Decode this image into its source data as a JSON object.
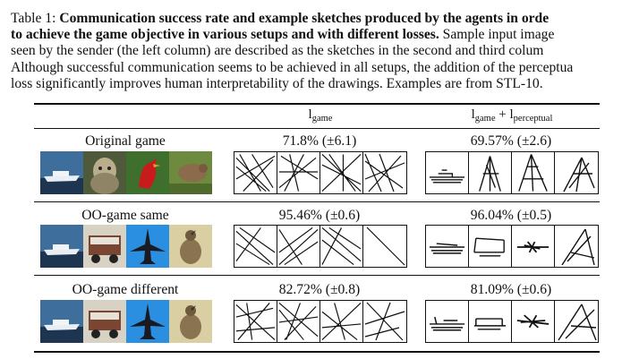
{
  "caption": {
    "label": "Table 1:",
    "bold": "Communication success rate and example sketches produced by the agents in orde",
    "bold_cont": "to achieve the game objective in various setups and with different losses.",
    "line2_rest": "Sample input image",
    "line3": "seen by the sender (the left column) are described as the sketches in the second and third colum",
    "line4": "Although successful communication seems to be achieved in all setups, the addition of the perceptua",
    "line5": "loss significantly improves human interpretability of the drawings. Examples are from STL-10."
  },
  "table": {
    "col1_header": {
      "base": "l",
      "sub": "game"
    },
    "col2_header": {
      "base1": "l",
      "sub1": "game",
      "plus": " + ",
      "base2": "l",
      "sub2": "perceptual"
    },
    "rows": [
      {
        "title": "Original game",
        "score_game": "71.8% (±6.1)",
        "score_perceptual": "69.57% (±2.6)",
        "images": [
          "ship-image",
          "monkey-image",
          "cardinal-bird-image",
          "bird-on-grass-image"
        ]
      },
      {
        "title": "OO-game same",
        "score_game": "95.46% (±0.6)",
        "score_perceptual": "96.04% (±0.5)",
        "images": [
          "ship-image",
          "truck-image",
          "jet-airplane-image",
          "bird-image"
        ]
      },
      {
        "title": "OO-game different",
        "score_game": "82.72% (±0.8)",
        "score_perceptual": "81.09% (±0.6)",
        "images": [
          "ship-image",
          "truck-image",
          "jet-airplane-image",
          "bird-image"
        ]
      }
    ]
  }
}
